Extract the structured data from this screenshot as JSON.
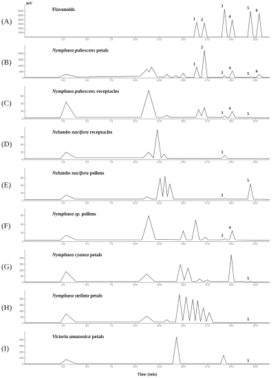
{
  "chart_data": [
    {
      "type": "line",
      "panel": "(A)",
      "title": {
        "plain": "Flavonoids"
      },
      "ylabel": "mV",
      "color": "#555555",
      "xlim": [
        -1.5,
        24
      ],
      "xticks": [
        2.5,
        {
          "value": 5,
          "label": "5.0"
        },
        7.5,
        {
          "value": 10,
          "label": "10.0"
        },
        12.5,
        {
          "value": 15,
          "label": "15.0"
        },
        17.5,
        {
          "value": 20,
          "label": "20.0"
        },
        22.5
      ],
      "ylim": [
        0,
        7000
      ],
      "yticks": [
        1000,
        2000,
        3000,
        4000,
        5000,
        6000
      ],
      "x": [
        -1.5,
        16.1,
        16.4,
        16.7,
        16.9,
        17.2,
        17.5,
        19.0,
        19.3,
        19.6,
        19.8,
        20.1,
        20.4,
        21.7,
        22.0,
        22.3,
        22.6,
        22.9,
        23.2,
        24
      ],
      "values": [
        0,
        0,
        3500,
        0,
        0,
        3300,
        0,
        0,
        6500,
        0,
        0,
        4000,
        0,
        0,
        6000,
        0,
        0,
        5500,
        0,
        0
      ],
      "peak_labels": [
        {
          "label": "1",
          "x": 16.4,
          "y": 3500
        },
        {
          "label": "2",
          "x": 17.2,
          "y": 3300
        },
        {
          "label": "3",
          "x": 19.3,
          "y": 6500
        },
        {
          "label": "4",
          "x": 20.1,
          "y": 4000
        },
        {
          "label": "5",
          "x": 22.0,
          "y": 6000
        },
        {
          "label": "6",
          "x": 22.9,
          "y": 5500
        }
      ]
    },
    {
      "type": "line",
      "panel": "(B)",
      "title": {
        "italic": "Nymphaea pubescens",
        "plain": "petals"
      },
      "color": "#555555",
      "xlim": [
        -1.5,
        24
      ],
      "xticks": [
        2.5,
        {
          "value": 5,
          "label": "5.0"
        },
        7.5,
        {
          "value": 10,
          "label": "10.0"
        },
        12.5,
        {
          "value": 15,
          "label": "15.0"
        },
        17.5,
        {
          "value": 20,
          "label": "20.0"
        },
        22.5
      ],
      "ylim": [
        0,
        2500
      ],
      "yticks": [
        0,
        500,
        1000,
        1500,
        2000
      ],
      "x": [
        -1.5,
        2.0,
        2.8,
        4.0,
        10.5,
        11.2,
        11.45,
        11.7,
        12.3,
        13.0,
        13.3,
        13.6,
        13.9,
        14.2,
        14.5,
        14.7,
        15.0,
        15.3,
        16.1,
        16.4,
        16.7,
        16.9,
        17.2,
        17.5,
        19.1,
        19.3,
        19.5,
        19.8,
        20.1,
        20.4,
        21.8,
        22.0,
        22.2,
        22.6,
        22.9,
        23.2,
        24
      ],
      "values": [
        50,
        50,
        300,
        80,
        150,
        700,
        500,
        900,
        100,
        80,
        300,
        80,
        60,
        200,
        60,
        60,
        400,
        60,
        60,
        900,
        60,
        60,
        2300,
        60,
        60,
        200,
        60,
        60,
        600,
        60,
        60,
        100,
        60,
        60,
        300,
        60,
        60
      ],
      "peak_labels": [
        {
          "label": "1",
          "x": 16.4,
          "y": 900
        },
        {
          "label": "2",
          "x": 17.2,
          "y": 2300
        },
        {
          "label": "3",
          "x": 19.3,
          "y": 200
        },
        {
          "label": "4",
          "x": 20.1,
          "y": 600
        },
        {
          "label": "5",
          "x": 22.0,
          "y": 100
        },
        {
          "label": "6",
          "x": 22.9,
          "y": 300
        }
      ]
    },
    {
      "type": "line",
      "panel": "(C)",
      "title": {
        "italic": "Nymphaea pubescens",
        "plain": "receptacles"
      },
      "color": "#555555",
      "xlim": [
        -1.5,
        24
      ],
      "xticks": [
        2.5,
        {
          "value": 5,
          "label": "5.0"
        },
        7.5,
        {
          "value": 10,
          "label": "10.0"
        },
        12.5,
        {
          "value": 15,
          "label": "15.0"
        },
        17.5,
        {
          "value": 20,
          "label": "20.0"
        },
        22.5
      ],
      "ylim": [
        0,
        80
      ],
      "yticks": [
        0,
        20,
        40,
        60
      ],
      "x": [
        -1.5,
        2.2,
        2.8,
        3.8,
        10.6,
        11.4,
        12.2,
        13.0,
        13.3,
        13.6,
        16.3,
        16.6,
        16.9,
        17.2,
        17.5,
        19.1,
        19.3,
        19.5,
        19.8,
        20.1,
        20.4,
        21.8,
        22.0,
        22.2,
        24
      ],
      "values": [
        3,
        3,
        45,
        5,
        5,
        75,
        5,
        5,
        10,
        4,
        4,
        25,
        8,
        30,
        4,
        4,
        8,
        4,
        4,
        20,
        4,
        3,
        5,
        3,
        3
      ],
      "peak_labels": [
        {
          "label": "3",
          "x": 19.3,
          "y": 8
        },
        {
          "label": "4",
          "x": 20.1,
          "y": 20
        },
        {
          "label": "5",
          "x": 22.0,
          "y": 5
        }
      ]
    },
    {
      "type": "line",
      "panel": "(D)",
      "title": {
        "italic": "Nelumbo nucifera",
        "plain": "receptacles"
      },
      "color": "#555555",
      "xlim": [
        -1.5,
        24
      ],
      "xticks": [
        2.5,
        {
          "value": 5,
          "label": "5.0"
        },
        7.5,
        {
          "value": 10,
          "label": "10.0"
        },
        12.5,
        {
          "value": 15,
          "label": "15.0"
        },
        17.5,
        {
          "value": 20,
          "label": "20.0"
        },
        22.5
      ],
      "ylim": [
        0,
        80
      ],
      "yticks": [
        0,
        20,
        40,
        60
      ],
      "x": [
        -1.5,
        2.2,
        2.8,
        3.8,
        10.8,
        11.4,
        11.9,
        12.3,
        12.7,
        13.0,
        13.3,
        19.0,
        19.3,
        19.6,
        24
      ],
      "values": [
        3,
        3,
        20,
        5,
        5,
        20,
        5,
        80,
        5,
        15,
        4,
        4,
        12,
        4,
        3
      ],
      "peak_labels": [
        {
          "label": "3",
          "x": 19.3,
          "y": 12
        }
      ]
    },
    {
      "type": "line",
      "panel": "(E)",
      "title": {
        "italic": "Nelumbo nucifera",
        "plain": "pollens"
      },
      "color": "#555555",
      "xlim": [
        -1.5,
        24
      ],
      "xticks": [
        2.5,
        {
          "value": 5,
          "label": "5.0"
        },
        7.5,
        {
          "value": 10,
          "label": "10.0"
        },
        12.5,
        {
          "value": 15,
          "label": "15.0"
        },
        17.5,
        {
          "value": 20,
          "label": "20.0"
        },
        22.5
      ],
      "ylim": [
        0,
        80
      ],
      "yticks": [
        0,
        20,
        40,
        60
      ],
      "x": [
        -1.5,
        2.2,
        2.8,
        3.8,
        10.8,
        11.2,
        11.8,
        12.2,
        12.6,
        12.85,
        13.1,
        13.35,
        13.6,
        14.0,
        19.1,
        19.3,
        19.5,
        21.7,
        22.0,
        22.3,
        24
      ],
      "values": [
        3,
        3,
        15,
        4,
        4,
        10,
        4,
        4,
        60,
        10,
        65,
        10,
        45,
        4,
        4,
        6,
        4,
        4,
        45,
        4,
        3
      ],
      "peak_labels": [
        {
          "label": "3",
          "x": 19.3,
          "y": 6
        },
        {
          "label": "5",
          "x": 22.0,
          "y": 45
        }
      ]
    },
    {
      "type": "line",
      "panel": "(F)",
      "title": {
        "italic": "Nymphaea sp.",
        "plain": "pollens"
      },
      "color": "#555555",
      "xlim": [
        -1.5,
        24
      ],
      "xticks": [
        2.5,
        {
          "value": 5,
          "label": "5.0"
        },
        7.5,
        {
          "value": 10,
          "label": "10.0"
        },
        12.5,
        {
          "value": 15,
          "label": "15.0"
        },
        17.5,
        {
          "value": 20,
          "label": "20.0"
        },
        22.5
      ],
      "ylim": [
        0,
        70
      ],
      "yticks": [
        0,
        20,
        40,
        60
      ],
      "x": [
        -1.5,
        2.2,
        2.8,
        3.8,
        10.7,
        11.4,
        12.1,
        14.7,
        15.0,
        15.3,
        15.9,
        16.3,
        16.7,
        17.0,
        17.3,
        17.6,
        19.1,
        19.3,
        19.5,
        19.8,
        20.1,
        20.4,
        24
      ],
      "values": [
        3,
        3,
        15,
        4,
        4,
        60,
        5,
        4,
        25,
        4,
        4,
        50,
        4,
        4,
        10,
        4,
        4,
        7,
        4,
        4,
        25,
        4,
        3
      ],
      "peak_labels": [
        {
          "label": "3",
          "x": 19.3,
          "y": 7
        },
        {
          "label": "4",
          "x": 20.1,
          "y": 25
        }
      ]
    },
    {
      "type": "line",
      "panel": "(G)",
      "title": {
        "italic": "Nymphaea cyanea",
        "plain": "petals"
      },
      "color": "#555555",
      "xlim": [
        -1.5,
        24
      ],
      "xticks": [
        2.5,
        {
          "value": 5,
          "label": "5.0"
        },
        7.5,
        {
          "value": 10,
          "label": "10.0"
        },
        12.5,
        {
          "value": 15,
          "label": "15.0"
        },
        17.5,
        {
          "value": 20,
          "label": "20.0"
        },
        22.5
      ],
      "ylim": [
        0,
        250
      ],
      "yticks": [
        0,
        50,
        100,
        150,
        200
      ],
      "x": [
        -1.5,
        2.2,
        2.8,
        3.8,
        10.4,
        11.2,
        12.0,
        14.3,
        14.7,
        15.1,
        15.5,
        15.9,
        16.4,
        16.7,
        17.0,
        17.2,
        17.5,
        17.8,
        19.7,
        20.0,
        20.3,
        21.8,
        22.0,
        22.2,
        24
      ],
      "values": [
        5,
        5,
        90,
        10,
        10,
        70,
        10,
        10,
        150,
        20,
        120,
        10,
        10,
        30,
        10,
        10,
        20,
        10,
        10,
        230,
        10,
        5,
        8,
        5,
        5
      ],
      "peak_labels": [
        {
          "label": "5",
          "x": 22.0,
          "y": 8
        }
      ]
    },
    {
      "type": "line",
      "panel": "(H)",
      "title": {
        "italic": "Nymphaea stellata",
        "plain": "petals"
      },
      "color": "#555555",
      "xlim": [
        -1.5,
        24
      ],
      "xticks": [
        2.5,
        {
          "value": 5,
          "label": "5.0"
        },
        7.5,
        {
          "value": 10,
          "label": "10.0"
        },
        12.5,
        {
          "value": 15,
          "label": "15.0"
        },
        17.5,
        {
          "value": 20,
          "label": "20.0"
        },
        22.5
      ],
      "ylim": [
        0,
        250
      ],
      "yticks": [
        0,
        50,
        100,
        150,
        200
      ],
      "x": [
        -1.5,
        2.2,
        2.8,
        3.8,
        10.4,
        11.2,
        12.0,
        13.0,
        13.3,
        13.6,
        14.2,
        14.6,
        14.95,
        15.3,
        15.65,
        16.0,
        16.25,
        16.5,
        16.8,
        17.1,
        17.4,
        17.7,
        18.1,
        21.8,
        22.0,
        22.2,
        24
      ],
      "values": [
        5,
        5,
        80,
        10,
        10,
        60,
        10,
        10,
        30,
        10,
        10,
        240,
        20,
        220,
        20,
        200,
        20,
        190,
        15,
        130,
        15,
        90,
        8,
        5,
        7,
        5,
        5
      ],
      "peak_labels": [
        {
          "label": "5",
          "x": 22.0,
          "y": 7
        }
      ]
    },
    {
      "type": "line",
      "panel": "(I)",
      "title": {
        "italic": "Victoria amazonica",
        "plain": "petals"
      },
      "xlabel": "Time (min)",
      "color": "#555555",
      "xlim": [
        -1.5,
        24
      ],
      "xticks": [
        2.5,
        {
          "value": 5,
          "label": "5.0"
        },
        7.5,
        {
          "value": 10,
          "label": "10.0"
        },
        12.5,
        {
          "value": 15,
          "label": "15.0"
        },
        17.5,
        {
          "value": 20,
          "label": "20.0"
        },
        22.5
      ],
      "ylim": [
        0,
        500
      ],
      "yticks": [
        0,
        100,
        200,
        300,
        400
      ],
      "x": [
        -1.5,
        2.2,
        2.8,
        3.8,
        13.9,
        14.3,
        14.7,
        18.9,
        19.2,
        19.5,
        21.8,
        22.0,
        22.2,
        24
      ],
      "values": [
        5,
        5,
        80,
        10,
        10,
        450,
        10,
        10,
        150,
        10,
        5,
        10,
        5,
        5
      ],
      "peak_labels": [
        {
          "label": "5",
          "x": 22.0,
          "y": 10
        }
      ]
    }
  ]
}
